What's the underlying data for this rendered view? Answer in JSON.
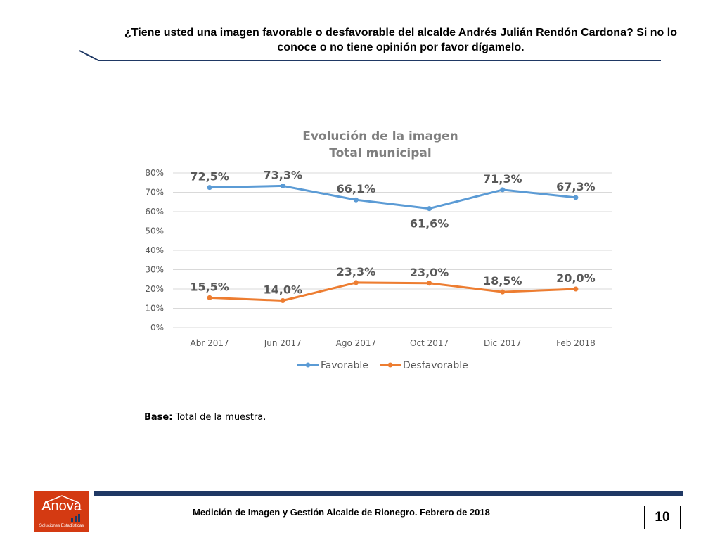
{
  "slide": {
    "question": "¿Tiene usted una imagen favorable o desfavorable del alcalde Andrés Julián Rendón Cardona? Si no lo conoce o no tiene opinión por favor dígamelo.",
    "base_label": "Base:",
    "base_text": " Total de la muestra.",
    "footer_text": "Medición de Imagen y Gestión Alcalde de Rionegro. Febrero de 2018",
    "page_number": "10",
    "logo_name": "Anova",
    "logo_tagline": "Soluciones Estadísticas"
  },
  "colors": {
    "favorable": "#5b9bd5",
    "desfavorable": "#ed7d31",
    "header_line": "#1f3864",
    "footer_bar": "#1f3864",
    "logo_bg": "#d43a12",
    "grid": "#d9d9d9"
  },
  "chart_data": {
    "type": "line",
    "title": "Evolución de la imagen",
    "subtitle": "Total municipal",
    "categories": [
      "Abr 2017",
      "Jun 2017",
      "Ago 2017",
      "Oct 2017",
      "Dic 2017",
      "Feb 2018"
    ],
    "series": [
      {
        "name": "Favorable",
        "values": [
          72.5,
          73.3,
          66.1,
          61.6,
          71.3,
          67.3
        ],
        "labels": [
          "72,5%",
          "73,3%",
          "66,1%",
          "61,6%",
          "71,3%",
          "67,3%"
        ],
        "label_position": [
          "above",
          "above",
          "above",
          "below",
          "above",
          "above"
        ]
      },
      {
        "name": "Desfavorable",
        "values": [
          15.5,
          14.0,
          23.3,
          23.0,
          18.5,
          20.0
        ],
        "labels": [
          "15,5%",
          "14,0%",
          "23,3%",
          "23,0%",
          "18,5%",
          "20,0%"
        ],
        "label_position": [
          "above",
          "above",
          "above",
          "above",
          "above",
          "above"
        ]
      }
    ],
    "y_ticks": [
      "0%",
      "10%",
      "20%",
      "30%",
      "40%",
      "50%",
      "60%",
      "70%",
      "80%"
    ],
    "ylim": [
      0,
      80
    ],
    "grid": true,
    "legend": "bottom"
  }
}
